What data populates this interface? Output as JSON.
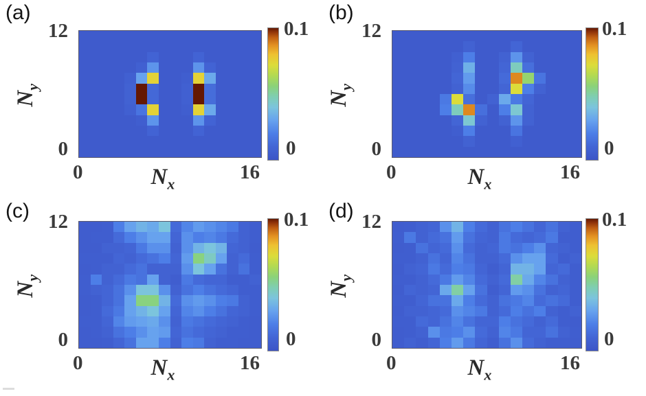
{
  "chart_data": {
    "type": "heatmap",
    "grid": {
      "cols": 16,
      "rows": 12,
      "row_order": "top-to-bottom (Ny=12 at top, Ny=0 at bottom)"
    },
    "x_axis": {
      "label_base": "N",
      "label_sub": "x",
      "min_tick": "0",
      "max_tick": "16",
      "range": [
        0,
        16
      ]
    },
    "y_axis": {
      "label_base": "N",
      "label_sub": "y",
      "min_tick": "0",
      "max_tick": "12",
      "range": [
        0,
        12
      ]
    },
    "colorbar": {
      "min_label": "0",
      "max_label": "0.1",
      "range": [
        0,
        0.1
      ]
    },
    "colors": {
      "background_blue": "#3c54c6",
      "peak_dark_red": "#641803",
      "colormap_stops": [
        [
          0.0,
          "#3c54c6"
        ],
        [
          0.1,
          "#4365d5"
        ],
        [
          0.2,
          "#4d7ee7"
        ],
        [
          0.3,
          "#67a2ee"
        ],
        [
          0.4,
          "#7cc4dd"
        ],
        [
          0.48,
          "#7fceb2"
        ],
        [
          0.56,
          "#8bd279"
        ],
        [
          0.64,
          "#b2da52"
        ],
        [
          0.72,
          "#dcdc3a"
        ],
        [
          0.8,
          "#eec132"
        ],
        [
          0.87,
          "#e39122"
        ],
        [
          0.93,
          "#c05f13"
        ],
        [
          0.97,
          "#92350a"
        ],
        [
          1.0,
          "#641803"
        ]
      ]
    },
    "panels": [
      {
        "id": "a",
        "label": "(a)",
        "matrix": [
          [
            0.004,
            0.004,
            0.004,
            0.004,
            0.004,
            0.004,
            0.004,
            0.004,
            0.004,
            0.004,
            0.004,
            0.004,
            0.004,
            0.004,
            0.004,
            0.004
          ],
          [
            0.004,
            0.004,
            0.004,
            0.004,
            0.004,
            0.004,
            0.004,
            0.004,
            0.004,
            0.004,
            0.004,
            0.004,
            0.004,
            0.004,
            0.004,
            0.004
          ],
          [
            0.004,
            0.004,
            0.004,
            0.004,
            0.004,
            0.004,
            0.009,
            0.004,
            0.004,
            0.004,
            0.009,
            0.004,
            0.004,
            0.004,
            0.004,
            0.004
          ],
          [
            0.004,
            0.004,
            0.004,
            0.004,
            0.004,
            0.007,
            0.026,
            0.004,
            0.004,
            0.004,
            0.026,
            0.009,
            0.004,
            0.004,
            0.004,
            0.004
          ],
          [
            0.004,
            0.004,
            0.004,
            0.004,
            0.007,
            0.03,
            0.075,
            0.004,
            0.004,
            0.006,
            0.075,
            0.032,
            0.004,
            0.004,
            0.004,
            0.004
          ],
          [
            0.004,
            0.004,
            0.004,
            0.004,
            0.008,
            0.1,
            0.011,
            0.004,
            0.004,
            0.007,
            0.1,
            0.013,
            0.004,
            0.004,
            0.004,
            0.004
          ],
          [
            0.004,
            0.004,
            0.004,
            0.004,
            0.008,
            0.1,
            0.011,
            0.004,
            0.004,
            0.007,
            0.1,
            0.013,
            0.004,
            0.004,
            0.004,
            0.004
          ],
          [
            0.004,
            0.004,
            0.004,
            0.004,
            0.007,
            0.016,
            0.075,
            0.004,
            0.004,
            0.006,
            0.075,
            0.032,
            0.004,
            0.004,
            0.004,
            0.004
          ],
          [
            0.004,
            0.004,
            0.004,
            0.004,
            0.004,
            0.006,
            0.026,
            0.004,
            0.004,
            0.004,
            0.026,
            0.009,
            0.004,
            0.004,
            0.004,
            0.004
          ],
          [
            0.004,
            0.004,
            0.004,
            0.004,
            0.004,
            0.004,
            0.009,
            0.004,
            0.004,
            0.004,
            0.009,
            0.004,
            0.004,
            0.004,
            0.004,
            0.004
          ],
          [
            0.004,
            0.004,
            0.004,
            0.004,
            0.004,
            0.004,
            0.004,
            0.004,
            0.004,
            0.004,
            0.004,
            0.004,
            0.004,
            0.004,
            0.004,
            0.004
          ],
          [
            0.004,
            0.004,
            0.004,
            0.004,
            0.004,
            0.004,
            0.004,
            0.004,
            0.004,
            0.004,
            0.004,
            0.004,
            0.004,
            0.004,
            0.004,
            0.004
          ]
        ]
      },
      {
        "id": "b",
        "label": "(b)",
        "matrix": [
          [
            0.004,
            0.004,
            0.004,
            0.004,
            0.004,
            0.004,
            0.004,
            0.004,
            0.004,
            0.004,
            0.004,
            0.004,
            0.004,
            0.004,
            0.004,
            0.004
          ],
          [
            0.004,
            0.004,
            0.004,
            0.004,
            0.004,
            0.004,
            0.008,
            0.004,
            0.004,
            0.004,
            0.01,
            0.004,
            0.004,
            0.004,
            0.004,
            0.004
          ],
          [
            0.004,
            0.004,
            0.004,
            0.004,
            0.004,
            0.007,
            0.02,
            0.004,
            0.004,
            0.008,
            0.026,
            0.008,
            0.004,
            0.004,
            0.004,
            0.004
          ],
          [
            0.004,
            0.004,
            0.004,
            0.004,
            0.004,
            0.008,
            0.034,
            0.004,
            0.004,
            0.01,
            0.046,
            0.014,
            0.004,
            0.004,
            0.004,
            0.004
          ],
          [
            0.004,
            0.004,
            0.004,
            0.004,
            0.004,
            0.01,
            0.028,
            0.004,
            0.004,
            0.012,
            0.088,
            0.058,
            0.016,
            0.004,
            0.004,
            0.004
          ],
          [
            0.004,
            0.004,
            0.004,
            0.004,
            0.004,
            0.008,
            0.024,
            0.004,
            0.004,
            0.01,
            0.072,
            0.02,
            0.008,
            0.004,
            0.004,
            0.004
          ],
          [
            0.004,
            0.004,
            0.004,
            0.004,
            0.018,
            0.072,
            0.014,
            0.004,
            0.008,
            0.032,
            0.018,
            0.01,
            0.004,
            0.004,
            0.004,
            0.004
          ],
          [
            0.004,
            0.004,
            0.004,
            0.004,
            0.02,
            0.046,
            0.088,
            0.014,
            0.004,
            0.02,
            0.042,
            0.008,
            0.004,
            0.004,
            0.004,
            0.004
          ],
          [
            0.004,
            0.004,
            0.004,
            0.004,
            0.004,
            0.01,
            0.042,
            0.008,
            0.004,
            0.008,
            0.026,
            0.008,
            0.004,
            0.004,
            0.004,
            0.004
          ],
          [
            0.004,
            0.004,
            0.004,
            0.004,
            0.004,
            0.006,
            0.02,
            0.004,
            0.004,
            0.004,
            0.016,
            0.004,
            0.004,
            0.004,
            0.004,
            0.004
          ],
          [
            0.004,
            0.004,
            0.004,
            0.004,
            0.004,
            0.004,
            0.008,
            0.004,
            0.004,
            0.004,
            0.007,
            0.004,
            0.004,
            0.004,
            0.004,
            0.004
          ],
          [
            0.004,
            0.004,
            0.004,
            0.004,
            0.004,
            0.004,
            0.004,
            0.004,
            0.004,
            0.004,
            0.004,
            0.004,
            0.004,
            0.004,
            0.004,
            0.004
          ]
        ]
      },
      {
        "id": "c",
        "label": "(c)",
        "matrix": [
          [
            0.005,
            0.005,
            0.006,
            0.02,
            0.03,
            0.035,
            0.032,
            0.04,
            0.012,
            0.022,
            0.028,
            0.025,
            0.022,
            0.018,
            0.008,
            0.006
          ],
          [
            0.005,
            0.006,
            0.006,
            0.012,
            0.02,
            0.025,
            0.03,
            0.03,
            0.01,
            0.025,
            0.02,
            0.022,
            0.018,
            0.012,
            0.008,
            0.006
          ],
          [
            0.005,
            0.005,
            0.008,
            0.008,
            0.01,
            0.018,
            0.025,
            0.025,
            0.008,
            0.025,
            0.035,
            0.04,
            0.035,
            0.01,
            0.008,
            0.005
          ],
          [
            0.006,
            0.006,
            0.006,
            0.01,
            0.008,
            0.012,
            0.015,
            0.02,
            0.01,
            0.028,
            0.055,
            0.045,
            0.03,
            0.008,
            0.012,
            0.006
          ],
          [
            0.005,
            0.006,
            0.008,
            0.008,
            0.012,
            0.015,
            0.008,
            0.008,
            0.008,
            0.025,
            0.04,
            0.03,
            0.015,
            0.008,
            0.015,
            0.006
          ],
          [
            0.006,
            0.02,
            0.008,
            0.012,
            0.018,
            0.015,
            0.03,
            0.008,
            0.006,
            0.018,
            0.012,
            0.01,
            0.01,
            0.006,
            0.006,
            0.008
          ],
          [
            0.006,
            0.008,
            0.01,
            0.015,
            0.025,
            0.04,
            0.04,
            0.025,
            0.008,
            0.015,
            0.02,
            0.015,
            0.012,
            0.01,
            0.006,
            0.006
          ],
          [
            0.005,
            0.006,
            0.01,
            0.015,
            0.03,
            0.055,
            0.055,
            0.035,
            0.012,
            0.025,
            0.028,
            0.025,
            0.02,
            0.018,
            0.008,
            0.006
          ],
          [
            0.005,
            0.006,
            0.012,
            0.018,
            0.03,
            0.035,
            0.04,
            0.03,
            0.01,
            0.022,
            0.025,
            0.02,
            0.015,
            0.01,
            0.008,
            0.006
          ],
          [
            0.006,
            0.006,
            0.01,
            0.022,
            0.028,
            0.03,
            0.032,
            0.025,
            0.008,
            0.018,
            0.015,
            0.012,
            0.01,
            0.008,
            0.006,
            0.005
          ],
          [
            0.005,
            0.006,
            0.008,
            0.015,
            0.02,
            0.025,
            0.03,
            0.028,
            0.01,
            0.015,
            0.012,
            0.01,
            0.008,
            0.006,
            0.006,
            0.005
          ],
          [
            0.005,
            0.005,
            0.006,
            0.01,
            0.015,
            0.03,
            0.03,
            0.02,
            0.008,
            0.02,
            0.018,
            0.008,
            0.006,
            0.006,
            0.005,
            0.005
          ]
        ]
      },
      {
        "id": "d",
        "label": "(d)",
        "matrix": [
          [
            0.005,
            0.006,
            0.008,
            0.01,
            0.025,
            0.035,
            0.02,
            0.012,
            0.008,
            0.015,
            0.02,
            0.015,
            0.01,
            0.015,
            0.008,
            0.006
          ],
          [
            0.006,
            0.018,
            0.008,
            0.012,
            0.015,
            0.028,
            0.015,
            0.01,
            0.008,
            0.018,
            0.012,
            0.01,
            0.012,
            0.018,
            0.006,
            0.006
          ],
          [
            0.005,
            0.006,
            0.015,
            0.01,
            0.012,
            0.025,
            0.012,
            0.008,
            0.01,
            0.018,
            0.015,
            0.02,
            0.025,
            0.01,
            0.008,
            0.006
          ],
          [
            0.006,
            0.006,
            0.008,
            0.015,
            0.01,
            0.022,
            0.015,
            0.008,
            0.008,
            0.012,
            0.025,
            0.03,
            0.03,
            0.012,
            0.006,
            0.008
          ],
          [
            0.005,
            0.008,
            0.01,
            0.018,
            0.012,
            0.02,
            0.018,
            0.01,
            0.006,
            0.01,
            0.035,
            0.035,
            0.03,
            0.01,
            0.012,
            0.006
          ],
          [
            0.006,
            0.006,
            0.008,
            0.012,
            0.018,
            0.028,
            0.022,
            0.012,
            0.008,
            0.012,
            0.05,
            0.032,
            0.022,
            0.015,
            0.008,
            0.006
          ],
          [
            0.005,
            0.01,
            0.008,
            0.01,
            0.032,
            0.05,
            0.03,
            0.015,
            0.006,
            0.01,
            0.028,
            0.025,
            0.015,
            0.008,
            0.01,
            0.006
          ],
          [
            0.006,
            0.006,
            0.01,
            0.015,
            0.015,
            0.032,
            0.02,
            0.012,
            0.008,
            0.015,
            0.018,
            0.022,
            0.012,
            0.015,
            0.012,
            0.006
          ],
          [
            0.005,
            0.008,
            0.008,
            0.01,
            0.012,
            0.025,
            0.022,
            0.018,
            0.008,
            0.012,
            0.02,
            0.015,
            0.02,
            0.008,
            0.006,
            0.008
          ],
          [
            0.006,
            0.006,
            0.012,
            0.01,
            0.015,
            0.022,
            0.015,
            0.01,
            0.01,
            0.02,
            0.015,
            0.012,
            0.008,
            0.012,
            0.006,
            0.005
          ],
          [
            0.005,
            0.006,
            0.008,
            0.025,
            0.018,
            0.02,
            0.025,
            0.012,
            0.008,
            0.022,
            0.018,
            0.01,
            0.01,
            0.015,
            0.008,
            0.006
          ],
          [
            0.005,
            0.008,
            0.006,
            0.01,
            0.02,
            0.028,
            0.018,
            0.01,
            0.006,
            0.015,
            0.025,
            0.012,
            0.008,
            0.006,
            0.006,
            0.005
          ]
        ]
      }
    ]
  }
}
